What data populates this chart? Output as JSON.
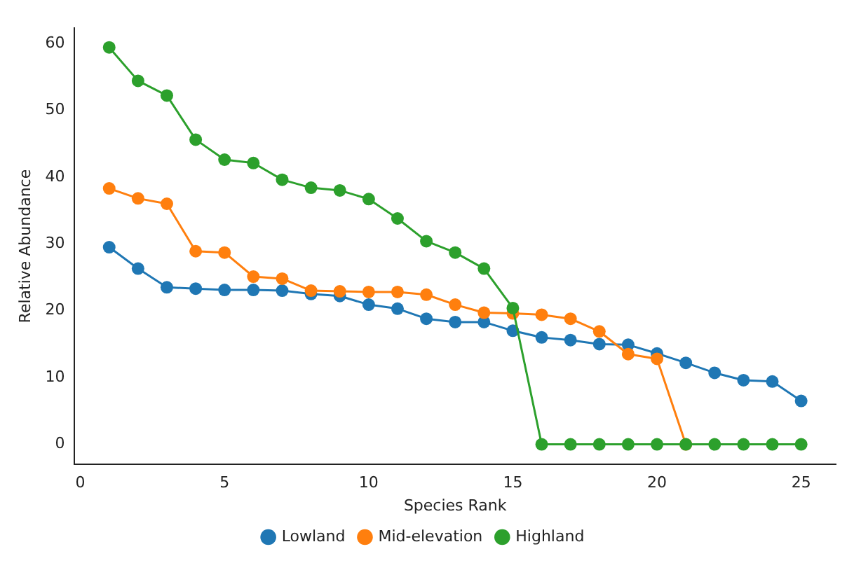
{
  "chart_data": {
    "type": "line",
    "xlabel": "Species Rank",
    "ylabel": "Relative Abundance",
    "x": [
      1,
      2,
      3,
      4,
      5,
      6,
      7,
      8,
      9,
      10,
      11,
      12,
      13,
      14,
      15,
      16,
      17,
      18,
      19,
      20,
      21,
      22,
      23,
      24,
      25
    ],
    "series": [
      {
        "name": "Lowland",
        "color": "#1f77b4",
        "values": [
          29.5,
          26.3,
          23.5,
          23.3,
          23.1,
          23.1,
          23.0,
          22.5,
          22.2,
          20.9,
          20.3,
          18.8,
          18.3,
          18.3,
          17.0,
          16.0,
          15.6,
          15.0,
          14.9,
          13.6,
          12.2,
          10.7,
          9.6,
          9.4,
          6.5
        ]
      },
      {
        "name": "Mid-elevation",
        "color": "#ff7f0e",
        "values": [
          38.3,
          36.8,
          36.0,
          28.9,
          28.7,
          25.1,
          24.8,
          23.0,
          22.9,
          22.8,
          22.8,
          22.4,
          20.9,
          19.7,
          19.6,
          19.4,
          18.8,
          16.9,
          13.5,
          12.8,
          0,
          null,
          null,
          null,
          null
        ]
      },
      {
        "name": "Highland",
        "color": "#2ca02c",
        "values": [
          59.4,
          54.4,
          52.2,
          45.6,
          42.6,
          42.1,
          39.6,
          38.4,
          38.0,
          36.7,
          33.8,
          30.4,
          28.7,
          26.3,
          20.4,
          0,
          0,
          0,
          0,
          0,
          0,
          0,
          0,
          0,
          0
        ]
      }
    ],
    "xlim": [
      -0.2,
      26.2
    ],
    "xticks": [
      0,
      5,
      10,
      15,
      20,
      25
    ],
    "ylim": [
      -3,
      62.3
    ],
    "yticks": [
      0,
      10,
      20,
      30,
      40,
      50,
      60
    ],
    "grid": false,
    "legend": "bottom",
    "marker": "circle",
    "line_style": "solid"
  }
}
